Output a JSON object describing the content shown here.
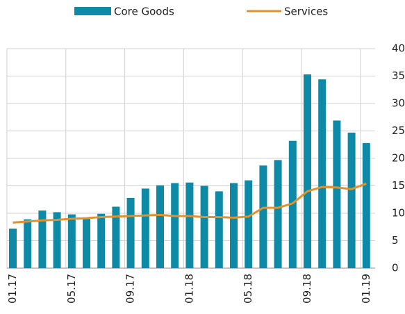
{
  "chart_data": {
    "type": "bar_line",
    "categories": [
      "01.17",
      null,
      null,
      null,
      "05.17",
      null,
      null,
      null,
      "09.17",
      null,
      null,
      null,
      "01.18",
      null,
      null,
      null,
      "05.18",
      null,
      null,
      null,
      "09.18",
      null,
      null,
      null,
      "01.19"
    ],
    "series": [
      {
        "name": "Core Goods",
        "type": "bar",
        "color": "#0f8aa6",
        "values": [
          7.2,
          8.9,
          10.5,
          10.2,
          9.8,
          9.0,
          9.9,
          11.2,
          12.8,
          14.5,
          15.1,
          15.5,
          15.6,
          15.0,
          14.0,
          15.5,
          16.0,
          18.7,
          19.7,
          23.2,
          35.3,
          34.4,
          26.9,
          24.7,
          22.8
        ]
      },
      {
        "name": "Services",
        "type": "line",
        "color": "#e0922f",
        "values": [
          8.3,
          8.5,
          8.7,
          8.8,
          9.0,
          9.1,
          9.3,
          9.4,
          9.5,
          9.6,
          9.7,
          9.5,
          9.5,
          9.3,
          9.3,
          9.2,
          9.4,
          11.0,
          11.0,
          11.8,
          14.0,
          14.8,
          14.7,
          14.4,
          15.4
        ]
      }
    ],
    "ylim": [
      0,
      40
    ],
    "yticks": [
      0,
      5,
      10,
      15,
      20,
      25,
      30,
      35,
      40
    ],
    "grid": true
  }
}
